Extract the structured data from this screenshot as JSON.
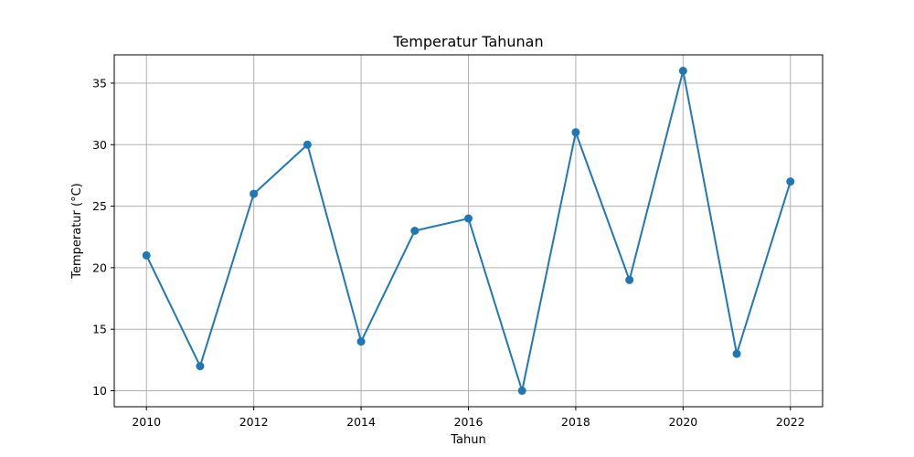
{
  "chart_data": {
    "type": "line",
    "title": "Temperatur Tahunan",
    "xlabel": "Tahun",
    "ylabel": "Temperatur (°C)",
    "x": [
      2010,
      2011,
      2012,
      2013,
      2014,
      2015,
      2016,
      2017,
      2018,
      2019,
      2020,
      2021,
      2022
    ],
    "series": [
      {
        "values": [
          21,
          12,
          26,
          30,
          14,
          23,
          24,
          10,
          31,
          19,
          36,
          13,
          27
        ],
        "color": "#1f77b4",
        "marker": "circle"
      }
    ],
    "xticks": [
      2010,
      2012,
      2014,
      2016,
      2018,
      2020,
      2022
    ],
    "yticks": [
      10,
      15,
      20,
      25,
      30,
      35
    ],
    "xlim": [
      2009.4,
      2022.6
    ],
    "ylim": [
      8.7,
      37.3
    ],
    "grid": true
  }
}
